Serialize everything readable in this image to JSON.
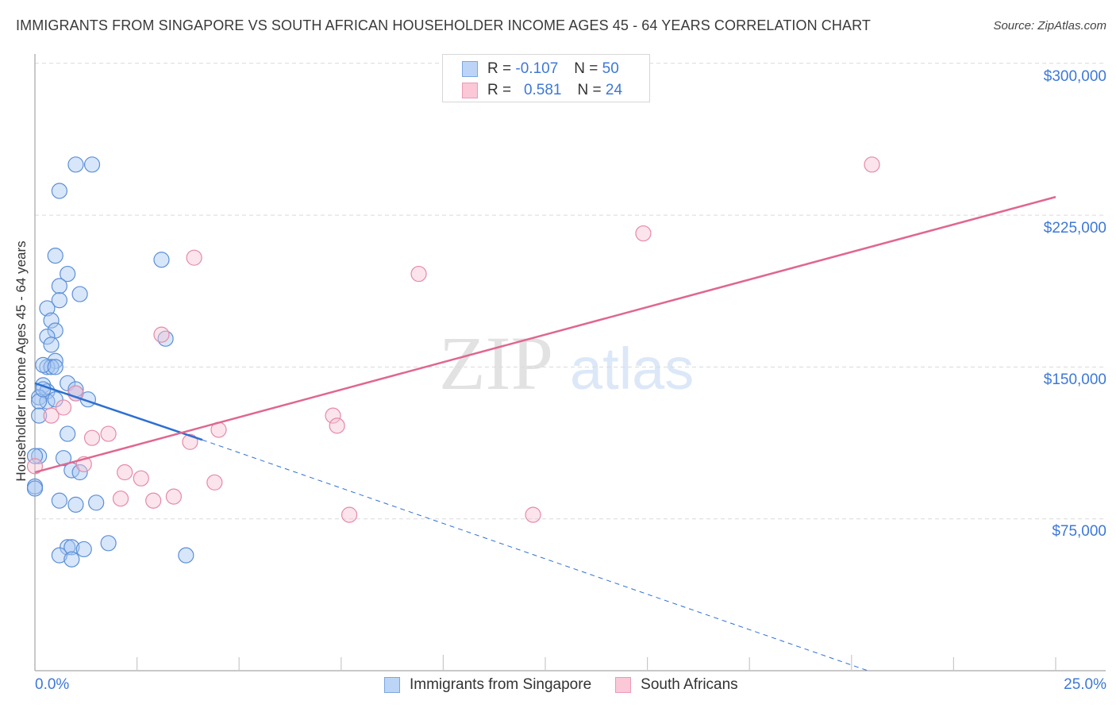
{
  "header": {
    "title": "IMMIGRANTS FROM SINGAPORE VS SOUTH AFRICAN HOUSEHOLDER INCOME AGES 45 - 64 YEARS CORRELATION CHART",
    "source": "Source: ZipAtlas.com"
  },
  "legend_top": {
    "rows": [
      {
        "r_label": "R =",
        "r_value": "-0.107",
        "n_label": "N =",
        "n_value": "50",
        "color": "#a9c8f2"
      },
      {
        "r_label": "R =",
        "r_value": "0.581",
        "n_label": "N =",
        "n_value": "24",
        "color": "#f7b8cb"
      }
    ]
  },
  "legend_bottom": {
    "items": [
      {
        "label": "Immigrants from Singapore",
        "color": "#a9c8f2"
      },
      {
        "label": "South Africans",
        "color": "#f7b8cb"
      }
    ]
  },
  "axes": {
    "ylabel": "Householder Income Ages 45 - 64 years",
    "yticks": [
      "$300,000",
      "$225,000",
      "$150,000",
      "$75,000"
    ],
    "xticks": [
      "0.0%",
      "25.0%"
    ]
  },
  "watermark": {
    "zip": "ZIP",
    "atlas": "atlas"
  },
  "colors": {
    "blue_fill": "#a9c8f2",
    "blue_stroke": "#5b8fd8",
    "blue_line": "#2d6fd2",
    "pink_fill": "#f7c4d3",
    "pink_stroke": "#e58aa8",
    "pink_line": "#e06690",
    "tick_text": "#3d78d8"
  },
  "chart_data": {
    "type": "scatter",
    "title": "IMMIGRANTS FROM SINGAPORE VS SOUTH AFRICAN HOUSEHOLDER INCOME AGES 45 - 64 YEARS CORRELATION CHART",
    "xlabel": "",
    "ylabel": "Householder Income Ages 45 - 64 years",
    "xlim": [
      0,
      25
    ],
    "ylim": [
      0,
      312000
    ],
    "x_unit": "%",
    "y_ticks": [
      75000,
      150000,
      225000,
      300000
    ],
    "x_tick_labels": [
      "0.0%",
      "25.0%"
    ],
    "grid": "horizontal dashed",
    "legend_position": "top-center and bottom",
    "series": [
      {
        "name": "Immigrants from Singapore",
        "R": -0.107,
        "N": 50,
        "points": [
          [
            1.0,
            250000
          ],
          [
            1.4,
            250000
          ],
          [
            0.6,
            237000
          ],
          [
            0.5,
            205000
          ],
          [
            3.1,
            203000
          ],
          [
            0.8,
            196000
          ],
          [
            0.6,
            190000
          ],
          [
            1.1,
            186000
          ],
          [
            0.6,
            183000
          ],
          [
            0.3,
            179000
          ],
          [
            0.4,
            173000
          ],
          [
            0.5,
            168000
          ],
          [
            3.2,
            164000
          ],
          [
            0.3,
            165000
          ],
          [
            0.4,
            161000
          ],
          [
            0.5,
            153000
          ],
          [
            0.3,
            150000
          ],
          [
            0.4,
            150000
          ],
          [
            0.2,
            151000
          ],
          [
            0.5,
            150000
          ],
          [
            0.8,
            142000
          ],
          [
            0.2,
            141000
          ],
          [
            0.3,
            138000
          ],
          [
            1.0,
            137000
          ],
          [
            0.1,
            135000
          ],
          [
            0.3,
            133000
          ],
          [
            0.5,
            134000
          ],
          [
            1.0,
            139000
          ],
          [
            1.3,
            134000
          ],
          [
            0.1,
            133000
          ],
          [
            0.8,
            117000
          ],
          [
            0.1,
            126000
          ],
          [
            0.1,
            106000
          ],
          [
            0.7,
            105000
          ],
          [
            0.0,
            91000
          ],
          [
            0.9,
            99000
          ],
          [
            1.1,
            98000
          ],
          [
            0.6,
            84000
          ],
          [
            1.0,
            82000
          ],
          [
            1.5,
            83000
          ],
          [
            0.8,
            61000
          ],
          [
            0.9,
            61000
          ],
          [
            1.2,
            60000
          ],
          [
            0.6,
            57000
          ],
          [
            0.9,
            55000
          ],
          [
            1.8,
            63000
          ],
          [
            3.7,
            57000
          ],
          [
            0.0,
            106000
          ],
          [
            0.0,
            90000
          ],
          [
            0.2,
            139000
          ]
        ],
        "trend": {
          "x": [
            0,
            4.1,
            20.4
          ],
          "y": [
            142000,
            114000,
            0
          ],
          "solid_until_x": 4.1
        }
      },
      {
        "name": "South Africans",
        "R": 0.581,
        "N": 24,
        "points": [
          [
            20.5,
            250000
          ],
          [
            14.9,
            216000
          ],
          [
            3.9,
            204000
          ],
          [
            3.1,
            166000
          ],
          [
            9.4,
            196000
          ],
          [
            7.3,
            126000
          ],
          [
            7.4,
            121000
          ],
          [
            0.4,
            126000
          ],
          [
            0.7,
            130000
          ],
          [
            1.4,
            115000
          ],
          [
            1.8,
            117000
          ],
          [
            4.5,
            119000
          ],
          [
            3.8,
            113000
          ],
          [
            1.2,
            102000
          ],
          [
            2.2,
            98000
          ],
          [
            2.6,
            95000
          ],
          [
            2.1,
            85000
          ],
          [
            2.9,
            84000
          ],
          [
            3.4,
            86000
          ],
          [
            4.4,
            93000
          ],
          [
            7.7,
            77000
          ],
          [
            12.2,
            77000
          ],
          [
            0.0,
            101000
          ],
          [
            1.0,
            137000
          ]
        ],
        "trend": {
          "x": [
            0,
            25
          ],
          "y": [
            98000,
            234000
          ]
        }
      }
    ]
  }
}
